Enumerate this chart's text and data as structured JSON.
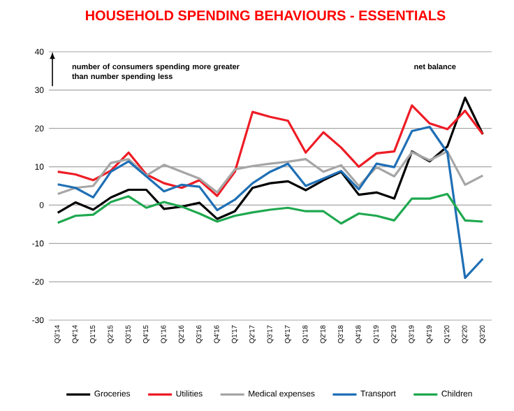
{
  "chart_data": {
    "type": "line",
    "title": "HOUSEHOLD SPENDING BEHAVIOURS - ESSENTIALS",
    "categories": [
      "Q3'14",
      "Q4'14",
      "Q1'15",
      "Q2'15",
      "Q3'15",
      "Q4'15",
      "Q1'16",
      "Q2'16",
      "Q3'16",
      "Q4'16",
      "Q1'17",
      "Q2'17",
      "Q3'17",
      "Q4'17",
      "Q1'18",
      "Q2'18",
      "Q3'18",
      "Q4'18",
      "Q1'19",
      "Q2'19",
      "Q3'19",
      "Q4'19",
      "Q1'20",
      "Q2'20",
      "Q3'20"
    ],
    "series": [
      {
        "name": "Groceries",
        "color": "#000000",
        "values": [
          -2,
          0.7,
          -1.2,
          2,
          4,
          4,
          -1,
          -0.4,
          0.6,
          -3.6,
          -1.6,
          4.5,
          5.7,
          6.2,
          3.9,
          6.5,
          8.7,
          2.7,
          3.3,
          1.7,
          14,
          11.4,
          15.3,
          28,
          18.5
        ]
      },
      {
        "name": "Utilities",
        "color": "#ee1c25",
        "values": [
          8.7,
          8,
          6.5,
          9,
          13.7,
          8,
          5.7,
          4.5,
          6.5,
          2.4,
          8.7,
          24.3,
          23,
          22,
          13.7,
          19,
          15,
          10,
          13.5,
          14,
          26,
          21.3,
          19.8,
          24.6,
          18.5
        ]
      },
      {
        "name": "Medical expenses",
        "color": "#a6a6a6",
        "values": [
          2.9,
          4.5,
          5,
          11,
          12,
          7.7,
          10.5,
          8.7,
          6.9,
          3.3,
          9.3,
          10.2,
          10.8,
          11.3,
          12,
          8.7,
          10.4,
          5,
          9.9,
          7.5,
          13.8,
          11.7,
          14,
          5.3,
          7.7
        ]
      },
      {
        "name": "Transport",
        "color": "#1f6fb5",
        "values": [
          5.4,
          4.5,
          2,
          8.7,
          11.4,
          7.5,
          3.6,
          5.3,
          4.8,
          -1.3,
          1.4,
          5.7,
          8.7,
          10.8,
          5,
          6.9,
          8.9,
          4.1,
          10.8,
          9.9,
          19.3,
          20.4,
          13.7,
          -19,
          -14
        ]
      },
      {
        "name": "Children",
        "color": "#1fa84f",
        "values": [
          -4.6,
          -2.8,
          -2.5,
          0.8,
          2.3,
          -0.7,
          0.8,
          -0.4,
          -2.2,
          -4.3,
          -2.8,
          -1.9,
          -1.2,
          -0.7,
          -1.6,
          -1.6,
          -4.8,
          -2.2,
          -2.8,
          -4,
          1.7,
          1.7,
          2.9,
          -4,
          -4.3
        ]
      }
    ],
    "ylim": [
      -30,
      40
    ],
    "yticks": [
      -30,
      -20,
      -10,
      0,
      10,
      20,
      30,
      40
    ],
    "grid": "y",
    "legend": "bottom",
    "line_style": "solid",
    "marker": "none",
    "annotations": [
      "number of consumers spending more greater than number spending less",
      "net balance"
    ]
  }
}
